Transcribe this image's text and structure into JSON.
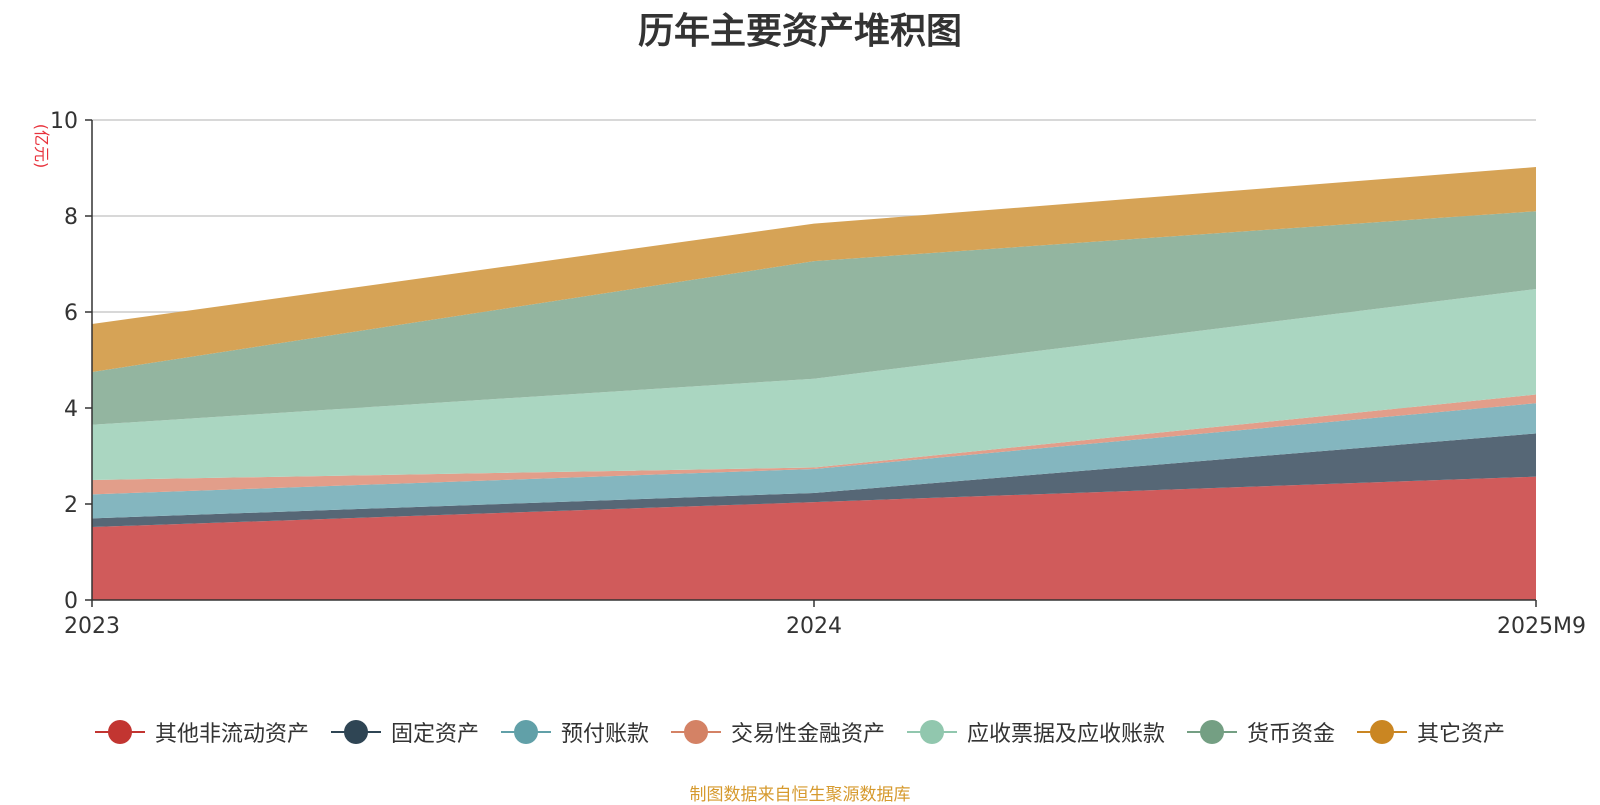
{
  "chart_data": {
    "type": "area",
    "stacked": true,
    "title": "历年主要资产堆积图",
    "y_unit": "(亿元)",
    "x": [
      "2023",
      "2024",
      "2025M9"
    ],
    "ylim": [
      0,
      10
    ],
    "y_ticks": [
      "0",
      "2",
      "4",
      "6",
      "8",
      "10"
    ],
    "grid": true,
    "legend_position": "bottom",
    "series": [
      {
        "name": "其他非流动资产",
        "values": [
          1.52,
          2.04,
          2.57
        ],
        "color": "#d05b5b",
        "marker_color": "#c23531"
      },
      {
        "name": "固定资产",
        "values": [
          0.18,
          0.19,
          0.9
        ],
        "color": "#566776",
        "marker_color": "#2f4554"
      },
      {
        "name": "预付账款",
        "values": [
          0.5,
          0.5,
          0.63
        ],
        "color": "#84b6bf",
        "marker_color": "#61a0a8"
      },
      {
        "name": "交易性金融资产",
        "values": [
          0.3,
          0.03,
          0.18
        ],
        "color": "#e29e8a",
        "marker_color": "#d48265"
      },
      {
        "name": "应收票据及应收账款",
        "values": [
          1.15,
          1.85,
          2.2
        ],
        "color": "#aad6c1",
        "marker_color": "#91c7ae"
      },
      {
        "name": "货币资金",
        "values": [
          1.1,
          2.45,
          1.62
        ],
        "color": "#93b5a0",
        "marker_color": "#749f83"
      },
      {
        "name": "其它资产",
        "values": [
          1.0,
          0.78,
          0.92
        ],
        "color": "#d6a356",
        "marker_color": "#ca8622"
      }
    ]
  },
  "source_note": "制图数据来自恒生聚源数据库"
}
